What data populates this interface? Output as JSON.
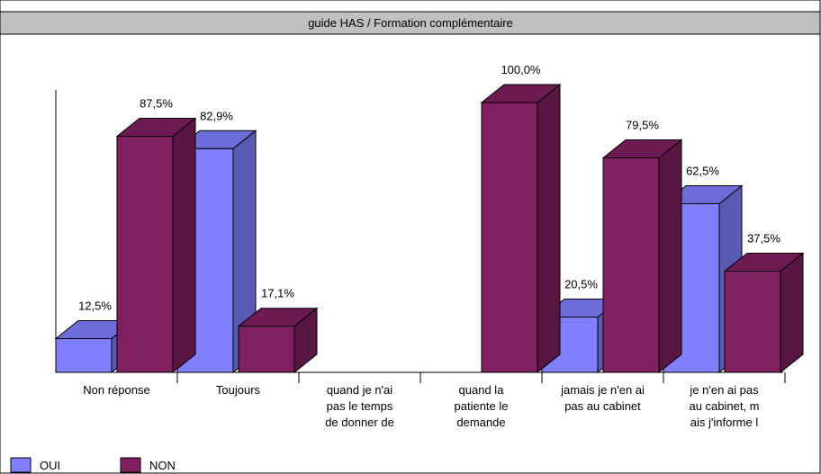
{
  "chart_data": {
    "type": "bar3d",
    "title": "guide HAS / Formation complémentaire",
    "categories": [
      [
        "Non réponse"
      ],
      [
        "Toujours"
      ],
      [
        "quand je n'ai",
        "pas le temps",
        "de donner de"
      ],
      [
        "quand la",
        "patiente le",
        "demande"
      ],
      [
        "jamais je n'en ai",
        "pas au cabinet"
      ],
      [
        "je n'en ai pas",
        "au cabinet, m",
        "ais j'informe l"
      ]
    ],
    "series": [
      {
        "name": "OUI",
        "color": "#8080ff",
        "values": [
          12.5,
          82.9,
          null,
          null,
          20.5,
          62.5
        ],
        "value_labels": [
          "12,5%",
          "82,9%",
          null,
          null,
          "20,5%",
          "62,5%"
        ]
      },
      {
        "name": "NON",
        "color": "#802060",
        "values": [
          87.5,
          17.1,
          null,
          100.0,
          79.5,
          37.5
        ],
        "value_labels": [
          "87,5%",
          "17,1%",
          null,
          "100,0%",
          "79,5%",
          "37,5%"
        ]
      }
    ]
  }
}
